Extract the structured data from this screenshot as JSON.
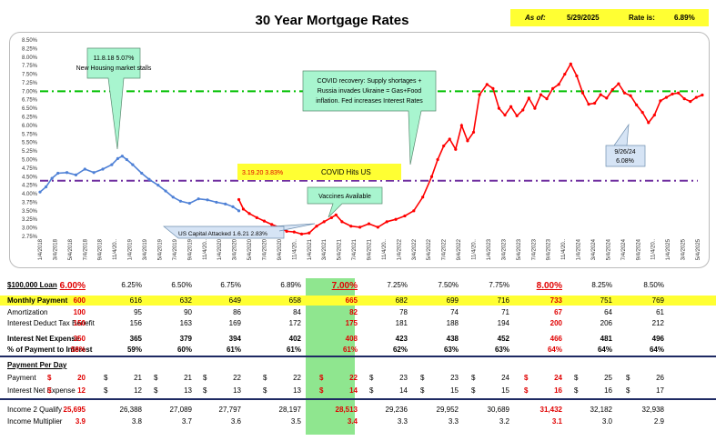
{
  "header": {
    "title": "30 Year Mortgage Rates",
    "as_of_label": "As of:",
    "as_of_date": "5/29/2025",
    "rate_label": "Rate is:",
    "rate_value": "6.89%"
  },
  "chart_data": {
    "type": "line",
    "ylim": [
      2.75,
      8.5
    ],
    "yticks": [
      "2.75%",
      "3.00%",
      "3.25%",
      "3.50%",
      "3.75%",
      "4.00%",
      "4.25%",
      "4.50%",
      "4.75%",
      "5.00%",
      "5.25%",
      "5.50%",
      "5.75%",
      "6.00%",
      "6.25%",
      "6.50%",
      "6.75%",
      "7.00%",
      "7.25%",
      "7.50%",
      "7.75%",
      "8.00%",
      "8.25%",
      "8.50%"
    ],
    "xticks": [
      "1/4/2018",
      "3/4/2018",
      "5/4/2018",
      "7/4/2018",
      "9/4/2018",
      "11/4/20..",
      "1/4/2019",
      "3/4/2019",
      "5/4/2019",
      "7/4/2019",
      "9/4/2019",
      "11/4/20..",
      "1/4/2020",
      "3/4/2020",
      "5/4/2020",
      "7/4/2020",
      "9/4/2020",
      "11/4/20..",
      "1/4/2021",
      "3/4/2021",
      "5/4/2021",
      "7/4/2021",
      "9/4/2021",
      "11/4/20..",
      "1/4/2022",
      "3/4/2022",
      "5/4/2022",
      "7/4/2022",
      "9/4/2022",
      "11/4/20..",
      "1/4/2023",
      "3/4/2023",
      "5/4/2023",
      "7/4/2023",
      "9/4/2023",
      "11/4/20..",
      "1/4/2024",
      "3/4/2024",
      "5/4/2024",
      "7/4/2024",
      "9/4/2024",
      "11/4/20..",
      "1/4/2025",
      "3/4/2025",
      "5/4/2025"
    ],
    "reference_lines": [
      {
        "value": 7.0,
        "color": "#00c000"
      },
      {
        "value": 4.38,
        "color": "#7030a0"
      }
    ],
    "series": [
      {
        "color": "#4f81d6",
        "points": [
          [
            0,
            4.05
          ],
          [
            0.4,
            4.2
          ],
          [
            0.8,
            4.45
          ],
          [
            1.2,
            4.6
          ],
          [
            1.8,
            4.62
          ],
          [
            2.4,
            4.55
          ],
          [
            3,
            4.72
          ],
          [
            3.6,
            4.62
          ],
          [
            4.2,
            4.72
          ],
          [
            4.8,
            4.85
          ],
          [
            5.2,
            5.03
          ],
          [
            5.5,
            5.1
          ],
          [
            5.8,
            5.0
          ],
          [
            6.2,
            4.85
          ],
          [
            6.8,
            4.6
          ],
          [
            7.3,
            4.42
          ],
          [
            7.9,
            4.25
          ],
          [
            8.4,
            4.08
          ],
          [
            8.9,
            3.9
          ],
          [
            9.4,
            3.78
          ],
          [
            10,
            3.72
          ],
          [
            10.6,
            3.85
          ],
          [
            11.2,
            3.82
          ],
          [
            11.8,
            3.75
          ],
          [
            12.4,
            3.7
          ],
          [
            12.9,
            3.62
          ],
          [
            13.3,
            3.5
          ]
        ]
      },
      {
        "color": "#ff0000",
        "points": [
          [
            13.3,
            3.83
          ],
          [
            13.6,
            3.55
          ],
          [
            14,
            3.42
          ],
          [
            14.5,
            3.3
          ],
          [
            15,
            3.2
          ],
          [
            15.5,
            3.1
          ],
          [
            16,
            3.02
          ],
          [
            16.5,
            2.9
          ],
          [
            17,
            2.88
          ],
          [
            17.5,
            2.82
          ],
          [
            18,
            2.85
          ],
          [
            18.5,
            3.05
          ],
          [
            19,
            3.18
          ],
          [
            19.5,
            3.3
          ],
          [
            19.8,
            3.38
          ],
          [
            20.2,
            3.18
          ],
          [
            20.8,
            3.05
          ],
          [
            21.4,
            3.02
          ],
          [
            22,
            3.12
          ],
          [
            22.6,
            3.02
          ],
          [
            23.2,
            3.18
          ],
          [
            23.8,
            3.25
          ],
          [
            24.4,
            3.35
          ],
          [
            25,
            3.5
          ],
          [
            25.6,
            3.9
          ],
          [
            26.2,
            4.5
          ],
          [
            26.6,
            5.0
          ],
          [
            27,
            5.4
          ],
          [
            27.4,
            5.6
          ],
          [
            27.8,
            5.3
          ],
          [
            28.2,
            6.0
          ],
          [
            28.6,
            5.55
          ],
          [
            29,
            5.8
          ],
          [
            29.4,
            6.9
          ],
          [
            29.9,
            7.2
          ],
          [
            30.3,
            7.08
          ],
          [
            30.7,
            6.5
          ],
          [
            31.1,
            6.3
          ],
          [
            31.5,
            6.55
          ],
          [
            31.9,
            6.28
          ],
          [
            32.3,
            6.45
          ],
          [
            32.7,
            6.8
          ],
          [
            33.1,
            6.5
          ],
          [
            33.5,
            6.9
          ],
          [
            33.9,
            6.78
          ],
          [
            34.3,
            7.08
          ],
          [
            34.7,
            7.2
          ],
          [
            35.1,
            7.5
          ],
          [
            35.5,
            7.8
          ],
          [
            35.9,
            7.45
          ],
          [
            36.3,
            6.95
          ],
          [
            36.7,
            6.62
          ],
          [
            37.1,
            6.65
          ],
          [
            37.5,
            6.9
          ],
          [
            37.9,
            6.8
          ],
          [
            38.3,
            7.05
          ],
          [
            38.7,
            7.22
          ],
          [
            39.1,
            6.95
          ],
          [
            39.5,
            6.87
          ],
          [
            39.9,
            6.6
          ],
          [
            40.3,
            6.38
          ],
          [
            40.7,
            6.08
          ],
          [
            41.1,
            6.3
          ],
          [
            41.5,
            6.72
          ],
          [
            41.9,
            6.82
          ],
          [
            42.3,
            6.92
          ],
          [
            42.7,
            6.95
          ],
          [
            43.1,
            6.78
          ],
          [
            43.5,
            6.7
          ],
          [
            43.9,
            6.82
          ],
          [
            44.3,
            6.89
          ]
        ]
      }
    ],
    "annotations": [
      {
        "text": "11.8.18 5.07%",
        "text2": "New Housing market stalls"
      },
      {
        "text": "COVID recovery: Supply shortages +",
        "text2": "Russia invades Ukraine = Gas+Food",
        "text3": "inflation. Fed increases Interest Rates"
      },
      {
        "text": "3.19.20 3.83%",
        "text2": "COVID Hits US"
      },
      {
        "text": "Vaccines Available"
      },
      {
        "text": "US Capital Attacked 1.6.21 2.83%"
      },
      {
        "text": "9/26/24",
        "text2": "6.08%"
      }
    ]
  },
  "table": {
    "rates": [
      "6.00%",
      "6.25%",
      "6.50%",
      "6.75%",
      "6.89%",
      "7.00%",
      "7.25%",
      "7.50%",
      "7.75%",
      "8.00%",
      "8.25%",
      "8.50%"
    ],
    "rows": {
      "loan": {
        "label": "$100,000 Loan"
      },
      "monthly": {
        "label": "Monthly Payment",
        "values": [
          "600",
          "616",
          "632",
          "649",
          "658",
          "665",
          "682",
          "699",
          "716",
          "733",
          "751",
          "769"
        ]
      },
      "amort": {
        "label": "Amortization",
        "values": [
          "100",
          "95",
          "90",
          "86",
          "84",
          "82",
          "78",
          "74",
          "71",
          "67",
          "64",
          "61"
        ]
      },
      "taxben": {
        "label": "Interest Deduct Tax Benefit",
        "values": [
          "150",
          "156",
          "163",
          "169",
          "172",
          "175",
          "181",
          "188",
          "194",
          "200",
          "206",
          "212"
        ]
      },
      "netexp": {
        "label": "Interest Net Expense",
        "values": [
          "350",
          "365",
          "379",
          "394",
          "402",
          "408",
          "423",
          "438",
          "452",
          "466",
          "481",
          "496"
        ]
      },
      "pctint": {
        "label": "% of Payment to Interest",
        "values": [
          "58%",
          "59%",
          "60%",
          "61%",
          "61%",
          "61%",
          "62%",
          "63%",
          "63%",
          "64%",
          "64%",
          "64%"
        ]
      },
      "perday": {
        "label": "Payment Per Day"
      },
      "payment": {
        "label": "Payment",
        "values": [
          "20",
          "21",
          "21",
          "22",
          "22",
          "22",
          "23",
          "23",
          "24",
          "24",
          "25",
          "26"
        ]
      },
      "netday": {
        "label": "Interest Net Expense",
        "values": [
          "12",
          "12",
          "13",
          "13",
          "13",
          "14",
          "14",
          "15",
          "15",
          "16",
          "16",
          "17"
        ]
      },
      "income": {
        "label": "Income 2 Qualify",
        "values": [
          "25,695",
          "26,388",
          "27,089",
          "27,797",
          "28,197",
          "28,513",
          "29,236",
          "29,952",
          "30,689",
          "31,432",
          "32,182",
          "32,938"
        ]
      },
      "mult": {
        "label": "Income Multiplier",
        "values": [
          "3.9",
          "3.8",
          "3.7",
          "3.6",
          "3.5",
          "3.4",
          "3.3",
          "3.3",
          "3.2",
          "3.1",
          "3.0",
          "2.9"
        ]
      }
    }
  }
}
